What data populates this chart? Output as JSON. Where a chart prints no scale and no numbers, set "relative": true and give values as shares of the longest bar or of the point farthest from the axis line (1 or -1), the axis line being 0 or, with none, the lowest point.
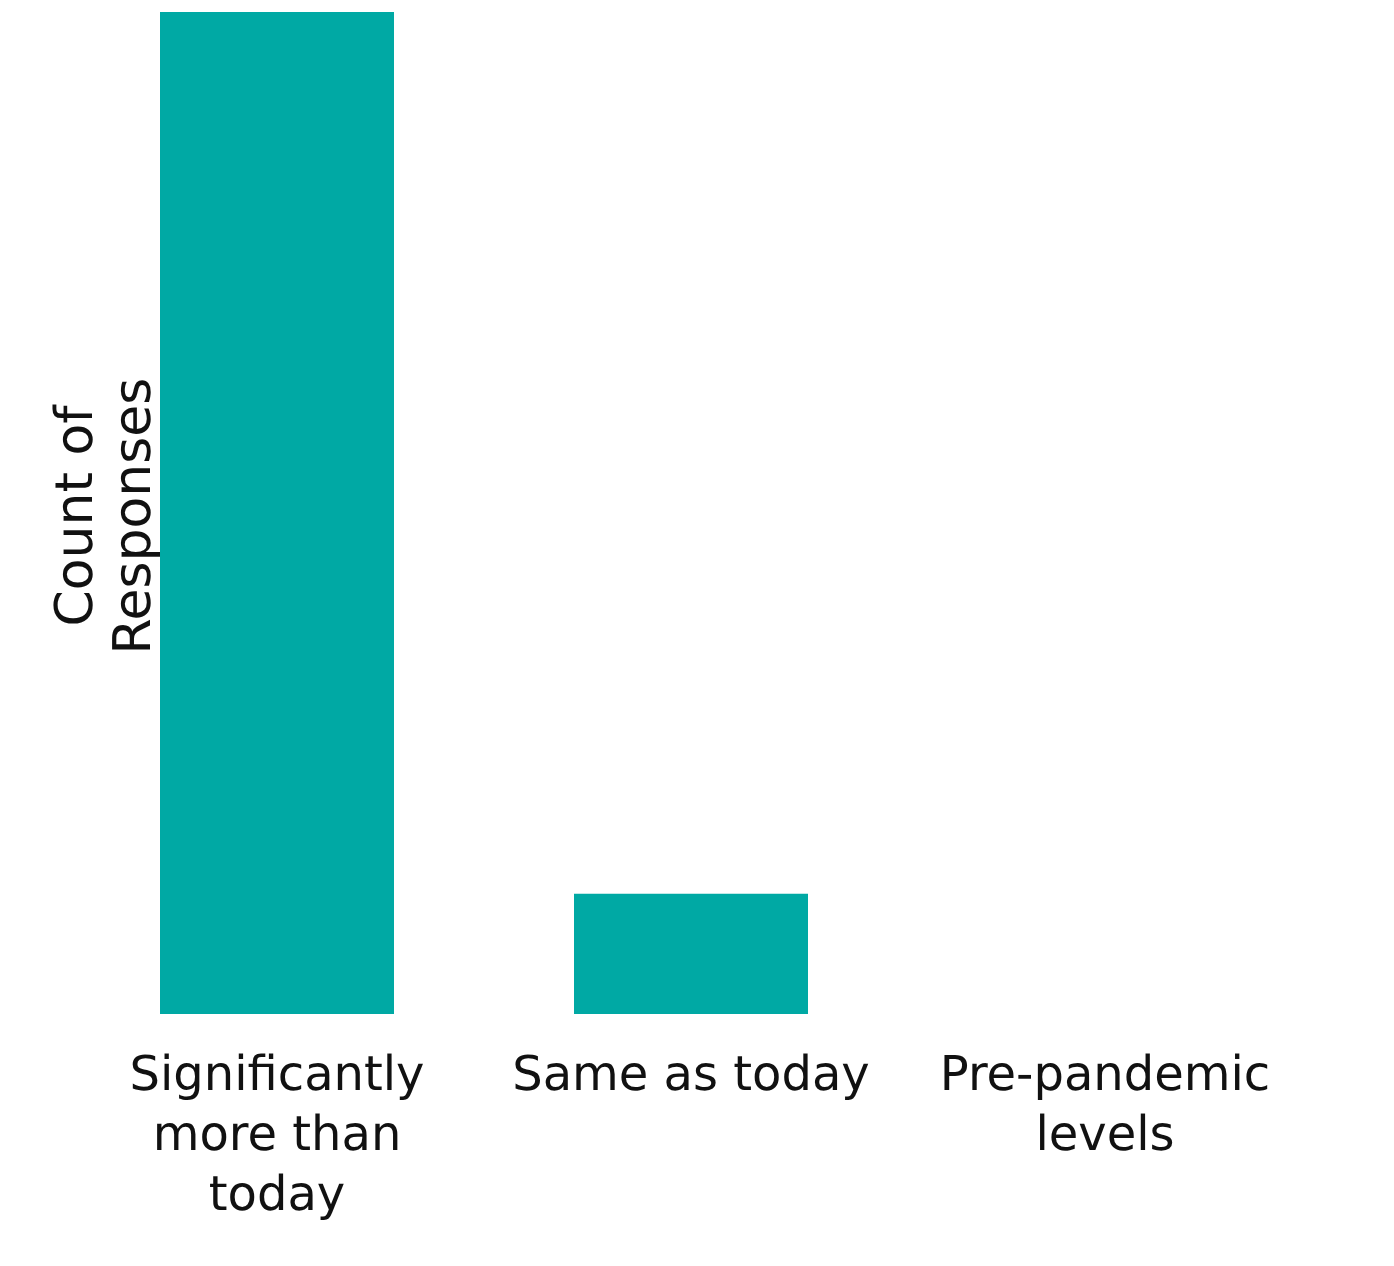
{
  "chart_data": {
    "type": "bar",
    "relative": true,
    "ylabel": "Count of Responses",
    "categories": [
      "Significantly more than today",
      "Same as today",
      "Pre-pandemic levels"
    ],
    "values": [
      1,
      0.12,
      0
    ],
    "color": "#00a9a4",
    "grid": false,
    "legend": false
  }
}
